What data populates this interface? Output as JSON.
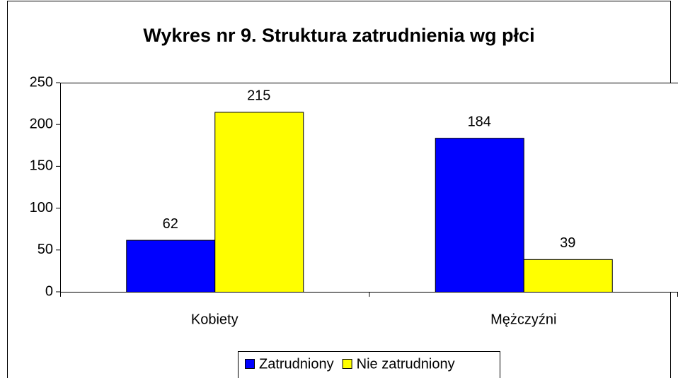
{
  "chart_data": {
    "type": "bar",
    "title": "Wykres nr 9. Struktura zatrudnienia wg płci",
    "categories": [
      "Kobiety",
      "Mężczyźni"
    ],
    "series": [
      {
        "name": "Zatrudniony",
        "color": "#0000ff",
        "values": [
          62,
          184
        ]
      },
      {
        "name": "Nie zatrudniony",
        "color": "#ffff00",
        "values": [
          215,
          39
        ]
      }
    ],
    "ylim": [
      0,
      250
    ],
    "yticks": [
      0,
      50,
      100,
      150,
      200,
      250
    ],
    "grid": false,
    "legend": "bottom"
  }
}
